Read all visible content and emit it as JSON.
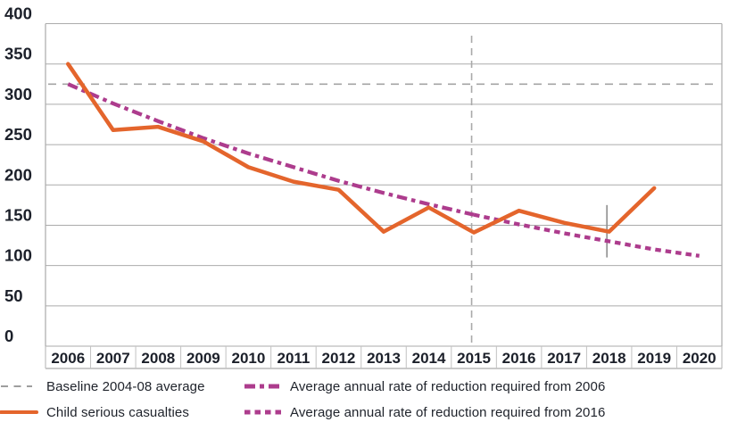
{
  "chart_data": {
    "type": "line",
    "title": "",
    "xlabel": "",
    "ylabel": "",
    "ylim": [
      0,
      400
    ],
    "y_ticks": [
      0,
      50,
      100,
      150,
      200,
      250,
      300,
      350,
      400
    ],
    "grid": true,
    "categories": [
      "2006",
      "2007",
      "2008",
      "2009",
      "2010",
      "2011",
      "2012",
      "2013",
      "2014",
      "2015",
      "2016",
      "2017",
      "2018",
      "2019",
      "2020"
    ],
    "series": [
      {
        "name": "Child serious casualties",
        "style": "solid",
        "color": "#E4652C",
        "years": [
          "2006",
          "2007",
          "2008",
          "2009",
          "2010",
          "2011",
          "2012",
          "2013",
          "2014",
          "2015",
          "2016",
          "2017",
          "2018",
          "2019"
        ],
        "values": [
          350,
          268,
          272,
          254,
          222,
          204,
          194,
          142,
          172,
          141,
          168,
          153,
          142,
          196
        ]
      },
      {
        "name": "Average annual rate of reduction required from 2006",
        "style": "dashdot",
        "color": "#AD3C8D",
        "years": [
          "2006",
          "2007",
          "2008",
          "2009",
          "2010",
          "2011",
          "2012",
          "2013",
          "2014",
          "2015"
        ],
        "values": [
          325,
          301,
          279,
          258,
          239,
          222,
          205,
          190,
          176,
          163
        ]
      },
      {
        "name": "Average annual rate of reduction required from 2016",
        "style": "dotted",
        "color": "#AD3C8D",
        "years": [
          "2015",
          "2016",
          "2017",
          "2018",
          "2019",
          "2020"
        ],
        "values": [
          163,
          151,
          140,
          130,
          120,
          112
        ]
      }
    ],
    "baseline": {
      "label": "Baseline 2004-08 average",
      "value": 325,
      "color": "#A4A4A4"
    },
    "vline": {
      "year": "2015",
      "color": "#A9A9A9"
    },
    "error_bar": {
      "year": "2018",
      "low": 110,
      "high": 175,
      "color": "#8F8F8F"
    },
    "legend": [
      {
        "label": "Baseline 2004-08 average",
        "style": "dashed",
        "color": "#9E9E9E"
      },
      {
        "label": "Average annual rate of reduction required from 2006",
        "style": "dashdot",
        "color": "#AD3C8D"
      },
      {
        "label": "Child serious casualties",
        "style": "solid",
        "color": "#E4652C"
      },
      {
        "label": "Average annual rate of reduction required from 2016",
        "style": "dotted",
        "color": "#AD3C8D"
      }
    ],
    "colors": {
      "grid": "#ABABAB",
      "separator": "#C2C2C2",
      "text": "#1c202a",
      "casualties": "#E4652C",
      "required": "#AD3C8D",
      "baseline": "#A4A4A4"
    }
  }
}
